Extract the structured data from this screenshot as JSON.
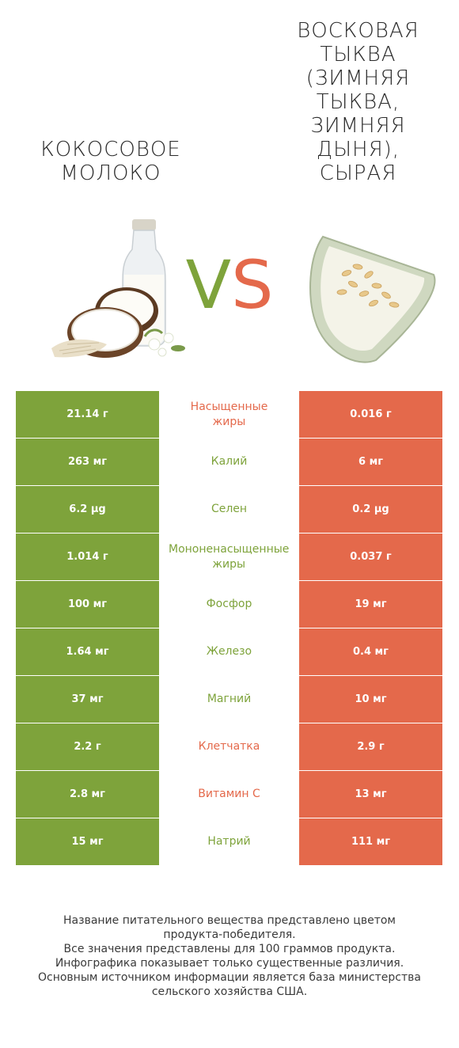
{
  "colors": {
    "left_winner": "#7ea33b",
    "right_winner": "#e4694b"
  },
  "header": {
    "left_title": "КОКОСОВОЕ МОЛОКО",
    "right_title": "ВОСКОВАЯ ТЫКВА (ЗИМНЯЯ ТЫКВА, ЗИМНЯЯ ДЫНЯ), СЫРАЯ",
    "vs_v": "V",
    "vs_s": "S"
  },
  "illustrations": {
    "left": "coconut-milk-illustration",
    "right": "winter-melon-illustration"
  },
  "rows": [
    {
      "left": "21.14 г",
      "name": "Насыщенные\nжиры",
      "right": "0.016 г",
      "winner": "right"
    },
    {
      "left": "263 мг",
      "name": "Калий",
      "right": "6 мг",
      "winner": "left"
    },
    {
      "left": "6.2 µg",
      "name": "Селен",
      "right": "0.2 µg",
      "winner": "left"
    },
    {
      "left": "1.014 г",
      "name": "Мононенасыщенные\nжиры",
      "right": "0.037 г",
      "winner": "left"
    },
    {
      "left": "100 мг",
      "name": "Фосфор",
      "right": "19 мг",
      "winner": "left"
    },
    {
      "left": "1.64 мг",
      "name": "Железо",
      "right": "0.4 мг",
      "winner": "left"
    },
    {
      "left": "37 мг",
      "name": "Магний",
      "right": "10 мг",
      "winner": "left"
    },
    {
      "left": "2.2 г",
      "name": "Клетчатка",
      "right": "2.9 г",
      "winner": "right"
    },
    {
      "left": "2.8 мг",
      "name": "Витамин C",
      "right": "13 мг",
      "winner": "right"
    },
    {
      "left": "15 мг",
      "name": "Натрий",
      "right": "111 мг",
      "winner": "left"
    }
  ],
  "footer": {
    "line1": "Название питательного вещества представлено цветом",
    "line2": "продукта-победителя.",
    "line3": "Все значения представлены для 100 граммов продукта.",
    "line4": "Инфографика показывает только существенные различия.",
    "line5": "Основным источником информации является база министерства",
    "line6": "сельского хозяйства США."
  }
}
